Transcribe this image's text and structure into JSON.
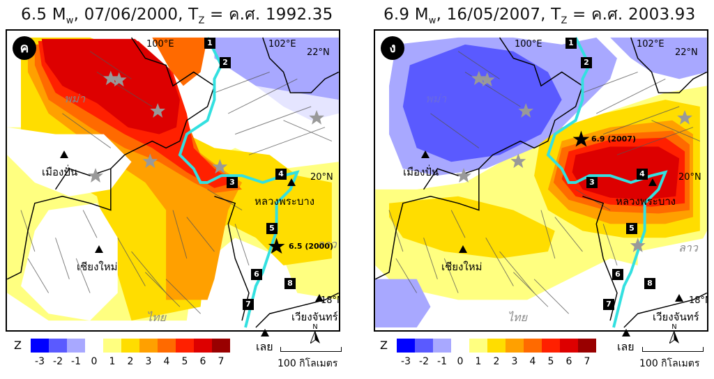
{
  "titles": [
    {
      "mag": "6.5 M",
      "sub": "w",
      "rest": ", 07/06/2000,  T",
      "tsub": "Z",
      "eq": " = ค.ศ. 1992.35"
    },
    {
      "mag": "6.9 M",
      "sub": "w",
      "rest": ", 16/05/2007, T",
      "tsub": "Z",
      "eq": " = ค.ศ. 2003.93"
    }
  ],
  "panels": [
    {
      "label": "ค",
      "lon100": "100°E",
      "lon102": "102°E",
      "lat22": "22°N",
      "lat20": "20°N",
      "lat18": "18°N",
      "myanmar": "พม่า",
      "thai": "ไทย",
      "laos": "ลาว",
      "muang": "เมืองปั่น",
      "chiangmai": "เชียงใหม่",
      "luang": "หลวงพระบาง",
      "vientiane": "เวียงจันทร์",
      "quake": "6.5 (2000)"
    },
    {
      "label": "ง",
      "lon100": "100°E",
      "lon102": "102°E",
      "lat22": "22°N",
      "lat20": "20°N",
      "lat18": "18°N",
      "myanmar": "พม่า",
      "thai": "ไทย",
      "laos": "ลาว",
      "muang": "เมืองปั่น",
      "chiangmai": "เชียงใหม่",
      "luang": "หลวงพระบาง",
      "vientiane": "เวียงจันทร์",
      "quake": "6.9 (2007)"
    }
  ],
  "site_numbers": [
    "1",
    "2",
    "3",
    "4",
    "5",
    "6",
    "7",
    "8"
  ],
  "legend": {
    "z_label": "Z",
    "ticks": [
      "-3",
      "-2",
      "-1",
      "0",
      "1",
      "2",
      "3",
      "4",
      "5",
      "6",
      "7"
    ],
    "colors": [
      "#0000ff",
      "#5a5aff",
      "#a8a8ff",
      "#ffffff",
      "#ffff80",
      "#ffdd00",
      "#ffa000",
      "#ff6a00",
      "#ff2000",
      "#dd0000",
      "#990000"
    ],
    "loei": "เลย",
    "north": "N",
    "scale": "100 กิโลเมตร"
  }
}
